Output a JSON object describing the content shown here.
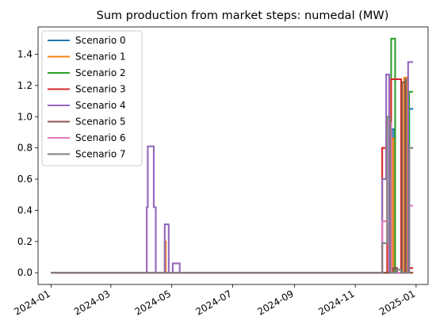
{
  "chart_data": {
    "type": "line",
    "title": "Sum production from market steps: numedal (MW)",
    "xlabel": "",
    "ylabel": "",
    "x_range": [
      "2023-12-19",
      "2025-01-13"
    ],
    "ylim": [
      -0.075,
      1.575
    ],
    "x_ticks": [
      {
        "date": "2024-01-01",
        "label": "2024-01"
      },
      {
        "date": "2024-03-01",
        "label": "2024-03"
      },
      {
        "date": "2024-05-01",
        "label": "2024-05"
      },
      {
        "date": "2024-07-01",
        "label": "2024-07"
      },
      {
        "date": "2024-09-01",
        "label": "2024-09"
      },
      {
        "date": "2024-11-01",
        "label": "2024-11"
      },
      {
        "date": "2025-01-01",
        "label": "2025-01"
      }
    ],
    "y_ticks": [
      0.0,
      0.2,
      0.4,
      0.6,
      0.8,
      1.0,
      1.2,
      1.4
    ],
    "y_tick_labels": [
      "0.0",
      "0.2",
      "0.4",
      "0.6",
      "0.8",
      "1.0",
      "1.2",
      "1.4"
    ],
    "grid": false,
    "legend_position": "top-left",
    "series": [
      {
        "name": "Scenario 0",
        "color": "#1f77b4",
        "points": [
          [
            "2024-01-01",
            0
          ],
          [
            "2024-12-08",
            0
          ],
          [
            "2024-12-08",
            0.92
          ],
          [
            "2024-12-10",
            0.92
          ],
          [
            "2024-12-10",
            0
          ],
          [
            "2024-12-21",
            0
          ],
          [
            "2024-12-21",
            1.25
          ],
          [
            "2024-12-22",
            1.25
          ],
          [
            "2024-12-22",
            0
          ],
          [
            "2024-12-25",
            0
          ],
          [
            "2024-12-25",
            1.05
          ],
          [
            "2024-12-29",
            1.05
          ]
        ]
      },
      {
        "name": "Scenario 1",
        "color": "#ff7f0e",
        "points": [
          [
            "2024-01-01",
            0
          ],
          [
            "2024-04-24",
            0
          ],
          [
            "2024-04-24",
            0.2
          ],
          [
            "2024-04-25",
            0.2
          ],
          [
            "2024-04-25",
            0
          ],
          [
            "2024-12-08",
            0
          ],
          [
            "2024-12-08",
            0.86
          ],
          [
            "2024-12-10",
            0.86
          ],
          [
            "2024-12-10",
            0
          ],
          [
            "2024-12-20",
            0
          ],
          [
            "2024-12-20",
            1.25
          ],
          [
            "2024-12-23",
            1.25
          ],
          [
            "2024-12-23",
            0
          ],
          [
            "2024-12-29",
            0
          ]
        ]
      },
      {
        "name": "Scenario 2",
        "color": "#2ca02c",
        "points": [
          [
            "2024-01-01",
            0
          ],
          [
            "2024-12-07",
            0
          ],
          [
            "2024-12-07",
            1.5
          ],
          [
            "2024-12-11",
            1.5
          ],
          [
            "2024-12-11",
            0
          ],
          [
            "2024-12-25",
            0
          ],
          [
            "2024-12-25",
            1.16
          ],
          [
            "2024-12-29",
            1.16
          ]
        ]
      },
      {
        "name": "Scenario 3",
        "color": "#d62728",
        "points": [
          [
            "2024-01-01",
            0
          ],
          [
            "2024-11-28",
            0
          ],
          [
            "2024-11-28",
            0.8
          ],
          [
            "2024-12-03",
            0.8
          ],
          [
            "2024-12-03",
            0
          ],
          [
            "2024-12-07",
            0
          ],
          [
            "2024-12-07",
            1.24
          ],
          [
            "2024-12-17",
            1.24
          ],
          [
            "2024-12-17",
            0
          ],
          [
            "2024-12-25",
            0
          ],
          [
            "2024-12-25",
            0.03
          ],
          [
            "2024-12-29",
            0.03
          ]
        ]
      },
      {
        "name": "Scenario 4",
        "color": "#9467bd",
        "points": [
          [
            "2024-01-01",
            0
          ],
          [
            "2024-04-06",
            0
          ],
          [
            "2024-04-06",
            0.42
          ],
          [
            "2024-04-07",
            0.42
          ],
          [
            "2024-04-07",
            0.81
          ],
          [
            "2024-04-13",
            0.81
          ],
          [
            "2024-04-13",
            0.42
          ],
          [
            "2024-04-15",
            0.42
          ],
          [
            "2024-04-15",
            0
          ],
          [
            "2024-04-24",
            0
          ],
          [
            "2024-04-24",
            0.31
          ],
          [
            "2024-04-28",
            0.31
          ],
          [
            "2024-04-28",
            0
          ],
          [
            "2024-05-02",
            0
          ],
          [
            "2024-05-02",
            0.06
          ],
          [
            "2024-05-09",
            0.06
          ],
          [
            "2024-05-09",
            0
          ],
          [
            "2024-11-28",
            0
          ],
          [
            "2024-11-28",
            0.6
          ],
          [
            "2024-12-02",
            0.6
          ],
          [
            "2024-12-02",
            1.27
          ],
          [
            "2024-12-05",
            1.27
          ],
          [
            "2024-12-05",
            0
          ],
          [
            "2024-12-24",
            0
          ],
          [
            "2024-12-24",
            1.35
          ],
          [
            "2024-12-29",
            1.35
          ]
        ]
      },
      {
        "name": "Scenario 5",
        "color": "#8c564b",
        "points": [
          [
            "2024-01-01",
            0
          ],
          [
            "2024-12-09",
            0
          ],
          [
            "2024-12-09",
            0.03
          ],
          [
            "2024-12-13",
            0.03
          ],
          [
            "2024-12-13",
            0
          ],
          [
            "2024-12-18",
            0
          ],
          [
            "2024-12-18",
            1.22
          ],
          [
            "2024-12-21",
            1.22
          ],
          [
            "2024-12-21",
            0
          ],
          [
            "2024-12-29",
            0
          ]
        ]
      },
      {
        "name": "Scenario 6",
        "color": "#e377c2",
        "points": [
          [
            "2024-01-01",
            0
          ],
          [
            "2024-11-28",
            0
          ],
          [
            "2024-11-28",
            0.33
          ],
          [
            "2024-12-03",
            0.33
          ],
          [
            "2024-12-03",
            0.96
          ],
          [
            "2024-12-07",
            0.96
          ],
          [
            "2024-12-07",
            0
          ],
          [
            "2024-12-25",
            0
          ],
          [
            "2024-12-25",
            0.43
          ],
          [
            "2024-12-29",
            0.43
          ]
        ]
      },
      {
        "name": "Scenario 7",
        "color": "#7f7f7f",
        "points": [
          [
            "2024-01-01",
            0
          ],
          [
            "2024-11-28",
            0
          ],
          [
            "2024-11-28",
            0.19
          ],
          [
            "2024-12-03",
            0.19
          ],
          [
            "2024-12-03",
            1.0
          ],
          [
            "2024-12-06",
            1.0
          ],
          [
            "2024-12-06",
            0
          ],
          [
            "2024-12-12",
            0
          ],
          [
            "2024-12-12",
            0.02
          ],
          [
            "2024-12-17",
            0.02
          ],
          [
            "2024-12-17",
            0
          ],
          [
            "2024-12-25",
            0
          ],
          [
            "2024-12-25",
            0.8
          ],
          [
            "2024-12-29",
            0.8
          ]
        ]
      }
    ]
  }
}
